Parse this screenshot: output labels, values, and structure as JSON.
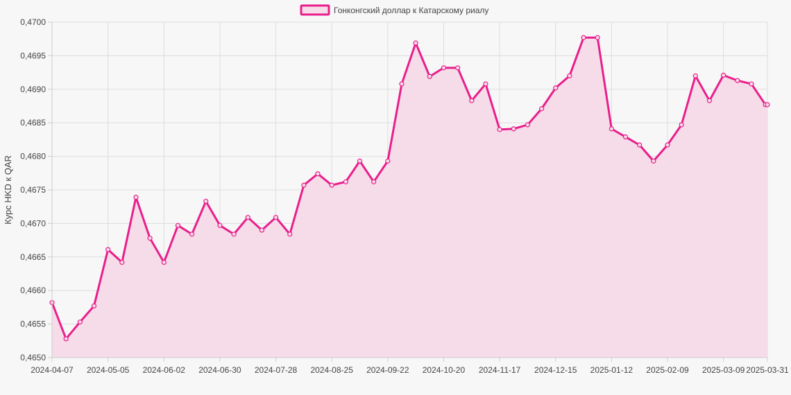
{
  "chart_data": {
    "type": "area",
    "series": [
      {
        "name": "Гонконгский доллар к Катарскому риалу",
        "color": "#e91e8c",
        "fill": "#f6dbe8",
        "x": [
          "2024-04-07",
          "2024-04-14",
          "2024-04-21",
          "2024-04-28",
          "2024-05-05",
          "2024-05-12",
          "2024-05-19",
          "2024-05-26",
          "2024-06-02",
          "2024-06-09",
          "2024-06-16",
          "2024-06-23",
          "2024-06-30",
          "2024-07-07",
          "2024-07-14",
          "2024-07-21",
          "2024-07-28",
          "2024-08-04",
          "2024-08-11",
          "2024-08-18",
          "2024-08-25",
          "2024-09-01",
          "2024-09-08",
          "2024-09-15",
          "2024-09-22",
          "2024-09-29",
          "2024-10-06",
          "2024-10-13",
          "2024-10-20",
          "2024-10-27",
          "2024-11-03",
          "2024-11-10",
          "2024-11-17",
          "2024-11-24",
          "2024-12-01",
          "2024-12-08",
          "2024-12-15",
          "2024-12-22",
          "2024-12-29",
          "2025-01-05",
          "2025-01-12",
          "2025-01-19",
          "2025-01-26",
          "2025-02-02",
          "2025-02-09",
          "2025-02-16",
          "2025-02-23",
          "2025-03-02",
          "2025-03-09",
          "2025-03-16",
          "2025-03-23",
          "2025-03-30",
          "2025-03-31"
        ],
        "values": [
          0.46582,
          0.46528,
          0.46553,
          0.46577,
          0.46661,
          0.46642,
          0.46739,
          0.46678,
          0.46642,
          0.46697,
          0.46684,
          0.46733,
          0.46697,
          0.46684,
          0.46709,
          0.4669,
          0.46709,
          0.46684,
          0.46757,
          0.46774,
          0.46757,
          0.46762,
          0.46793,
          0.46762,
          0.46793,
          0.46908,
          0.46969,
          0.46919,
          0.46932,
          0.46932,
          0.46883,
          0.46908,
          0.4684,
          0.46841,
          0.46847,
          0.46871,
          0.46902,
          0.4692,
          0.46977,
          0.46977,
          0.46841,
          0.46829,
          0.46817,
          0.46793,
          0.46817,
          0.46847,
          0.4692,
          0.46883,
          0.46921,
          0.46913,
          0.46908,
          0.46877,
          0.46877
        ]
      }
    ],
    "x_ticks": [
      "2024-04-07",
      "2024-05-05",
      "2024-06-02",
      "2024-06-30",
      "2024-07-28",
      "2024-08-25",
      "2024-09-22",
      "2024-10-20",
      "2024-11-17",
      "2024-12-15",
      "2025-01-12",
      "2025-02-09",
      "2025-03-09",
      "2025-03-31"
    ],
    "y_ticks": [
      "0,4650",
      "0,4655",
      "0,4660",
      "0,4665",
      "0,4670",
      "0,4675",
      "0,4680",
      "0,4685",
      "0,4690",
      "0,4695",
      "0,4700"
    ],
    "ylim": [
      0.465,
      0.47
    ],
    "ylabel": "Курс HKD к QAR",
    "xlabel": "",
    "grid": true,
    "legend": "top-center"
  }
}
